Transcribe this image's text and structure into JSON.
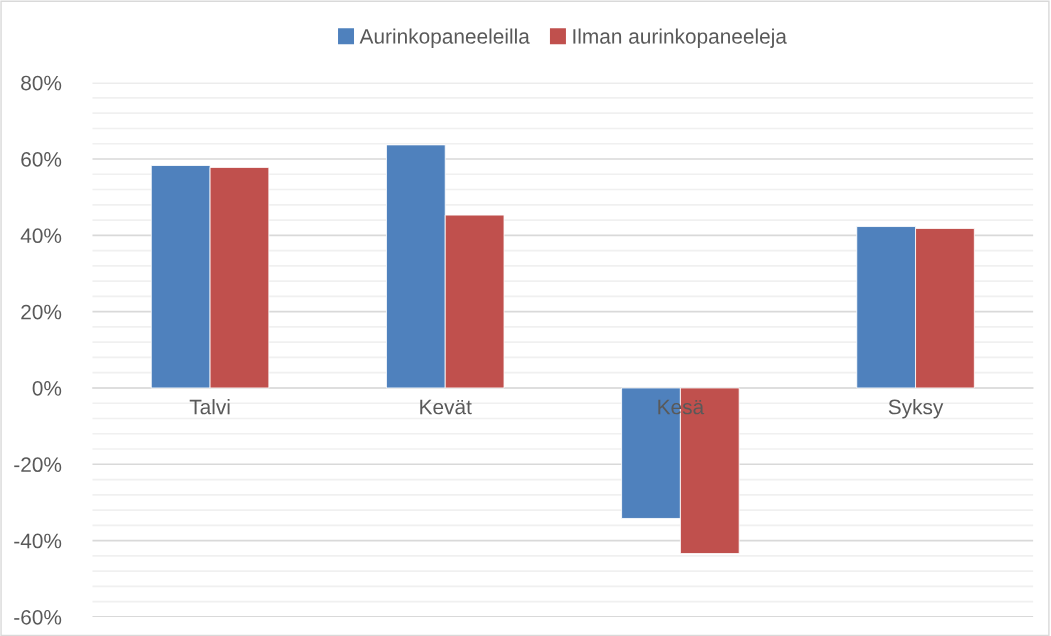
{
  "chart_data": {
    "type": "bar",
    "categories": [
      "Talvi",
      "Kevät",
      "Kesä",
      "Syksy"
    ],
    "series": [
      {
        "name": "Aurinkopaneeleilla",
        "color": "#4f81bd",
        "values": [
          58.3,
          63.7,
          -34.2,
          42.3
        ]
      },
      {
        "name": "Ilman aurinkopaneeleja",
        "color": "#c0504d",
        "values": [
          57.8,
          45.3,
          -43.4,
          41.8
        ]
      }
    ],
    "ylim": [
      -60,
      80
    ],
    "yticks": [
      {
        "value": -60,
        "label": "-60%"
      },
      {
        "value": -40,
        "label": "-40%"
      },
      {
        "value": -20,
        "label": "-20%"
      },
      {
        "value": 0,
        "label": "0%"
      },
      {
        "value": 20,
        "label": "20%"
      },
      {
        "value": 40,
        "label": "40%"
      },
      {
        "value": 60,
        "label": "60%"
      },
      {
        "value": 80,
        "label": "80%"
      }
    ],
    "grid": "y",
    "legend": "top"
  }
}
